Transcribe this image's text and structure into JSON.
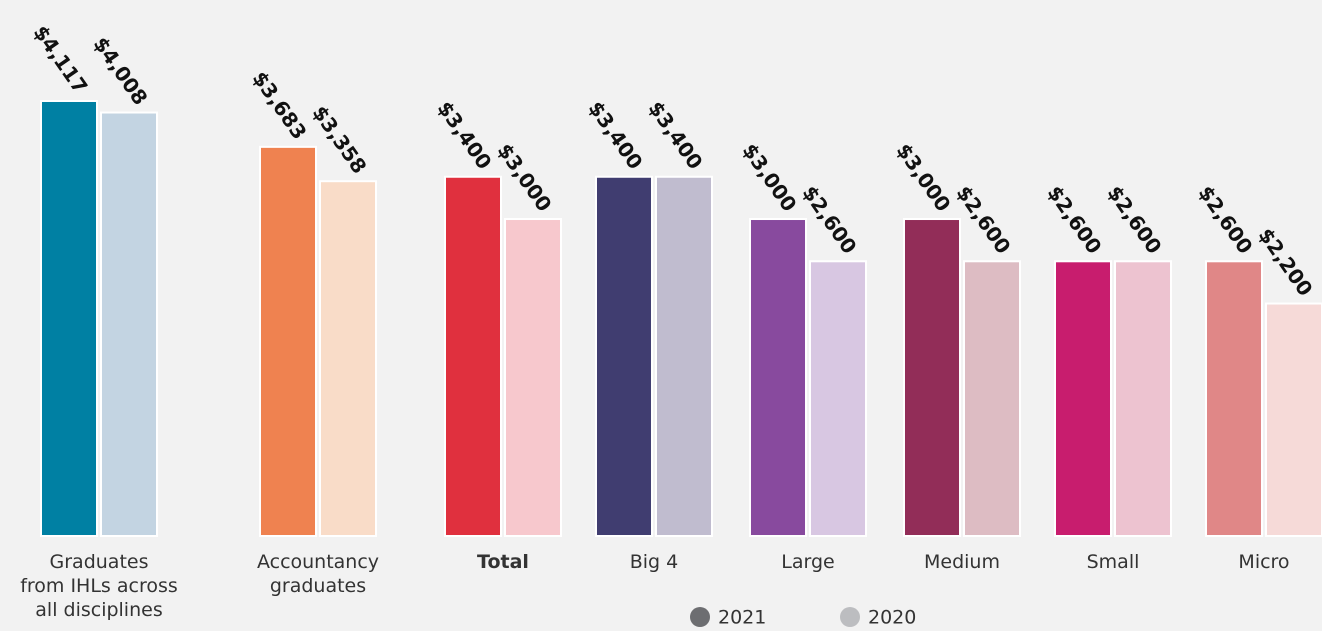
{
  "chart_data": {
    "type": "bar",
    "categories": [
      "Graduates\nfrom IHLs across\nall disciplines",
      "Accountancy\ngraduates",
      "Total",
      "Big 4",
      "Large",
      "Medium",
      "Small",
      "Micro"
    ],
    "series": [
      {
        "name": "2021",
        "color": "#6d6e71",
        "colors": [
          "#0080a3",
          "#ef8250",
          "#e0303e",
          "#403d70",
          "#884a9e",
          "#922d58",
          "#c81d6e",
          "#e08787"
        ],
        "values": [
          4117,
          3683,
          3400,
          3400,
          3000,
          3000,
          2600,
          2600
        ],
        "value_labels": [
          "$4,117",
          "$3,683",
          "$3,400",
          "$3,400",
          "$3,000",
          "$3,000",
          "$2,600",
          "$2,600"
        ]
      },
      {
        "name": "2020",
        "color": "#bcbdc0",
        "colors": [
          "#c3d4e2",
          "#f9dcc8",
          "#f7c8cd",
          "#c0bccf",
          "#d8c7e2",
          "#ddbcc3",
          "#edc3d0",
          "#f6dad8"
        ],
        "values": [
          4008,
          3358,
          3000,
          3400,
          2600,
          2600,
          2600,
          2200
        ],
        "value_labels": [
          "$4,008",
          "$3,358",
          "$3,000",
          "$3,400",
          "$2,600",
          "$2,600",
          "$2,600",
          "$2,200"
        ]
      }
    ]
  }
}
